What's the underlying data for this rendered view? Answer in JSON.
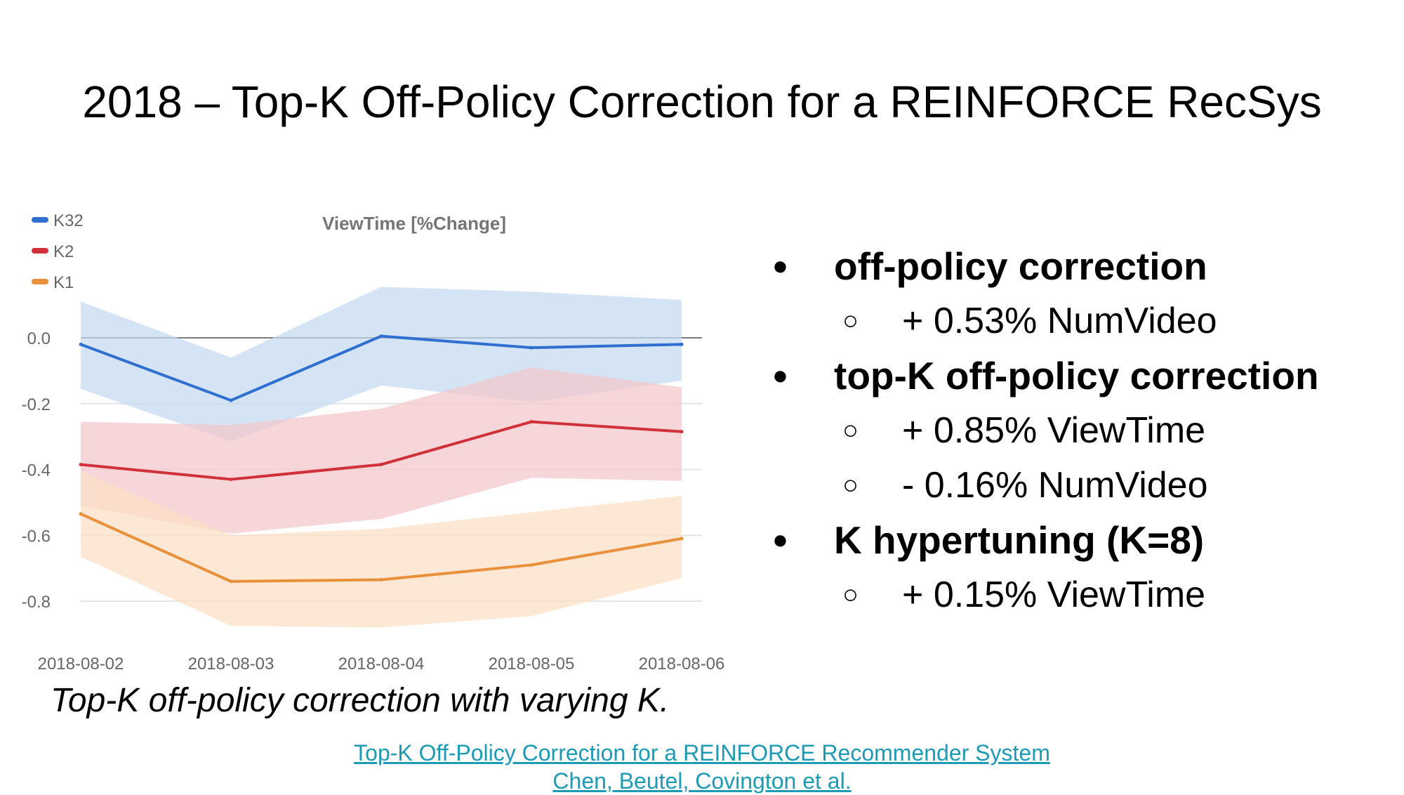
{
  "slide": {
    "title": "2018 – Top-K Off-Policy Correction for a REINFORCE RecSys",
    "caption": "Top-K off-policy correction with varying K.",
    "reference": {
      "line1": "Top-K Off-Policy Correction for a REINFORCE Recommender System",
      "line2": "Chen, Beutel, Covington et al."
    },
    "bullets": [
      {
        "text": "off-policy correction",
        "marker": "●",
        "sub": [
          {
            "text": "+ 0.53% NumVideo",
            "marker": "○"
          }
        ]
      },
      {
        "text": "top-K off-policy correction",
        "marker": "●",
        "sub": [
          {
            "text": "+ 0.85% ViewTime",
            "marker": "○"
          },
          {
            "text": "- 0.16% NumVideo",
            "marker": "○"
          }
        ]
      },
      {
        "text": "K hypertuning (K=8)",
        "marker": "●",
        "sub": [
          {
            "text": "+ 0.15% ViewTime",
            "marker": "○"
          }
        ]
      }
    ]
  },
  "chart_data": {
    "type": "line",
    "title": "ViewTime [%Change]",
    "categories": [
      "2018-08-02",
      "2018-08-03",
      "2018-08-04",
      "2018-08-05",
      "2018-08-06"
    ],
    "ylim": [
      -0.9,
      0.18
    ],
    "yticks": [
      0.0,
      -0.2,
      -0.4,
      -0.6,
      -0.8
    ],
    "ytick_labels": [
      "0.0",
      "-0.2",
      "-0.4",
      "-0.6",
      "-0.8"
    ],
    "grid": true,
    "legend": "top-left",
    "series": [
      {
        "name": "K32",
        "color": "#2f6fd0",
        "band_color": "#c5d9f1",
        "values": [
          -0.02,
          -0.19,
          0.005,
          -0.03,
          -0.02
        ],
        "upper": [
          0.11,
          -0.06,
          0.155,
          0.14,
          0.115
        ],
        "lower": [
          -0.155,
          -0.315,
          -0.145,
          -0.195,
          -0.13
        ]
      },
      {
        "name": "K2",
        "color": "#d0323c",
        "band_color": "#f4c6cb",
        "values": [
          -0.385,
          -0.43,
          -0.385,
          -0.255,
          -0.285
        ],
        "upper": [
          -0.255,
          -0.265,
          -0.215,
          -0.09,
          -0.15
        ],
        "lower": [
          -0.51,
          -0.595,
          -0.55,
          -0.425,
          -0.435
        ]
      },
      {
        "name": "K1",
        "color": "#e8903a",
        "band_color": "#fbdfc4",
        "values": [
          -0.535,
          -0.74,
          -0.735,
          -0.69,
          -0.61
        ],
        "upper": [
          -0.405,
          -0.6,
          -0.58,
          -0.53,
          -0.48
        ],
        "lower": [
          -0.665,
          -0.875,
          -0.88,
          -0.845,
          -0.73
        ]
      }
    ]
  }
}
